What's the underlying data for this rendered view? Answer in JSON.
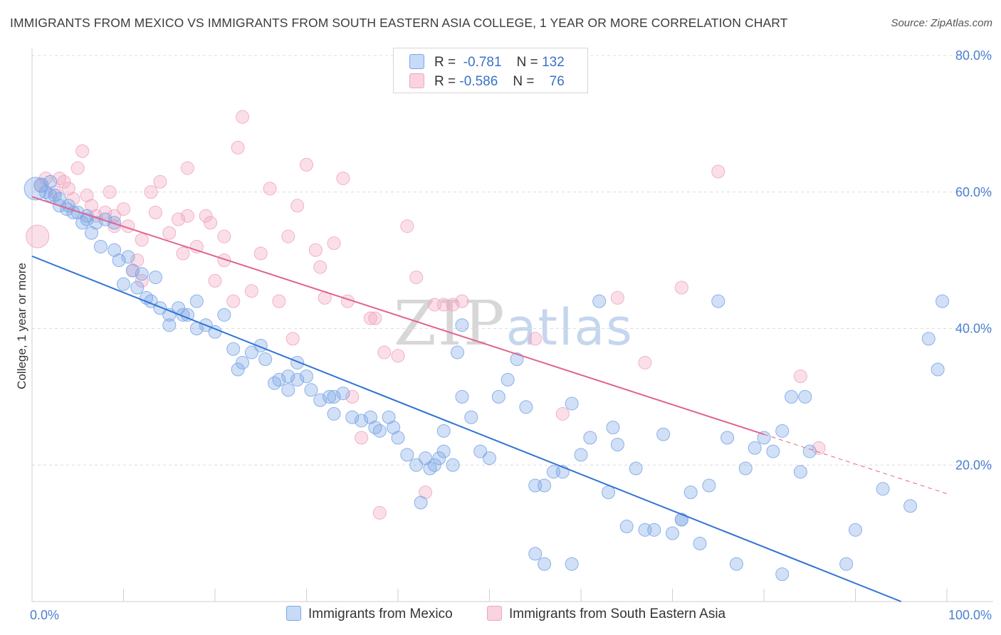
{
  "title": "IMMIGRANTS FROM MEXICO VS IMMIGRANTS FROM SOUTH EASTERN ASIA COLLEGE, 1 YEAR OR MORE CORRELATION CHART",
  "source": "Source: ZipAtlas.com",
  "watermark": {
    "zip": "ZIP",
    "atlas": "atlas"
  },
  "legend": {
    "rows": [
      {
        "r_label": "R =",
        "r_value": "-0.781",
        "n_label": "N =",
        "n_value": "132"
      },
      {
        "r_label": "R =",
        "r_value": "-0.586",
        "n_label": "N =",
        "n_value": "76"
      }
    ]
  },
  "bottom_legend": {
    "mexico": "Immigrants from Mexico",
    "sea": "Immigrants from South Eastern Asia"
  },
  "colors": {
    "mexico": "#7aa6e6",
    "mexico_line": "#2f73d6",
    "sea": "#f2a4bf",
    "sea_line": "#e0648f"
  },
  "chart_data": {
    "type": "scatter",
    "ylabel": "College, 1 year or more",
    "xlim": [
      0,
      100
    ],
    "ylim": [
      0,
      80
    ],
    "y_ticks": [
      "20.0%",
      "40.0%",
      "60.0%",
      "80.0%"
    ],
    "x_tick_labels": [
      "0.0%",
      "100.0%"
    ],
    "grid": true,
    "series": [
      {
        "name": "Immigrants from Mexico",
        "trend": {
          "x0": 0,
          "y0": 50.6,
          "x1": 95,
          "y1": 0
        },
        "points": [
          [
            0.4,
            60.5,
            16
          ],
          [
            1,
            61,
            10
          ],
          [
            1.5,
            60,
            9
          ],
          [
            2,
            61.5,
            9
          ],
          [
            3,
            59,
            9
          ],
          [
            2.5,
            59.5,
            9
          ],
          [
            4,
            58,
            9
          ],
          [
            3.8,
            57.5,
            9
          ],
          [
            5,
            57,
            9
          ],
          [
            6,
            56.5,
            9
          ],
          [
            7,
            55.5,
            9
          ],
          [
            8,
            56,
            9
          ],
          [
            9,
            55.5,
            9
          ],
          [
            4.5,
            57,
            9
          ],
          [
            5.5,
            55.5,
            9
          ],
          [
            6.5,
            54,
            9
          ],
          [
            7.5,
            52,
            9
          ],
          [
            9,
            51.5,
            9
          ],
          [
            9.5,
            50,
            9
          ],
          [
            10.5,
            50.5,
            9
          ],
          [
            11,
            48.5,
            9
          ],
          [
            12,
            48,
            9
          ],
          [
            13.5,
            47.5,
            9
          ],
          [
            10,
            46.5,
            9
          ],
          [
            11.5,
            46,
            9
          ],
          [
            12.5,
            44.5,
            9
          ],
          [
            13,
            44,
            9
          ],
          [
            14,
            43,
            9
          ],
          [
            15,
            42,
            9
          ],
          [
            16,
            43,
            9
          ],
          [
            17,
            42,
            9
          ],
          [
            15,
            40.5,
            9
          ],
          [
            16.5,
            42,
            9
          ],
          [
            18,
            40,
            9
          ],
          [
            19,
            40.5,
            9
          ],
          [
            20,
            39.5,
            9
          ],
          [
            21,
            42,
            9
          ],
          [
            18,
            44,
            9
          ],
          [
            22,
            37,
            9
          ],
          [
            23,
            35,
            9
          ],
          [
            22.5,
            34,
            9
          ],
          [
            24,
            36.5,
            9
          ],
          [
            25,
            37.5,
            9
          ],
          [
            25.5,
            35.5,
            9
          ],
          [
            27,
            32.5,
            9
          ],
          [
            28,
            33,
            9
          ],
          [
            29,
            35,
            9
          ],
          [
            29,
            32.5,
            9
          ],
          [
            30,
            33,
            9
          ],
          [
            30.5,
            31,
            9
          ],
          [
            31.5,
            29.5,
            9
          ],
          [
            32.5,
            30,
            9
          ],
          [
            33,
            30,
            9
          ],
          [
            34,
            30.5,
            9
          ],
          [
            35,
            27,
            9
          ],
          [
            36,
            26.5,
            9
          ],
          [
            37,
            27,
            9
          ],
          [
            37.5,
            25.5,
            9
          ],
          [
            38,
            25,
            9
          ],
          [
            39,
            27,
            9
          ],
          [
            39.5,
            25.5,
            9
          ],
          [
            40,
            24,
            9
          ],
          [
            41,
            21.5,
            9
          ],
          [
            42,
            20,
            9
          ],
          [
            43,
            21,
            9
          ],
          [
            43.5,
            19.5,
            9
          ],
          [
            45,
            25,
            9
          ],
          [
            44,
            20,
            9
          ],
          [
            46,
            20,
            9
          ],
          [
            46.5,
            36.5,
            9
          ],
          [
            47,
            40.5,
            9
          ],
          [
            48,
            27,
            9
          ],
          [
            49,
            22,
            9
          ],
          [
            50,
            21,
            9
          ],
          [
            51,
            30,
            9
          ],
          [
            52,
            32.5,
            9
          ],
          [
            53,
            35.5,
            9
          ],
          [
            54,
            28.5,
            9
          ],
          [
            55,
            17,
            9
          ],
          [
            56,
            17,
            9
          ],
          [
            57,
            19,
            9
          ],
          [
            58,
            19,
            9
          ],
          [
            59,
            29,
            9
          ],
          [
            60,
            21.5,
            9
          ],
          [
            61,
            24,
            9
          ],
          [
            62,
            44,
            9
          ],
          [
            63,
            16,
            9
          ],
          [
            64,
            23,
            9
          ],
          [
            65,
            11,
            9
          ],
          [
            66,
            19.5,
            9
          ],
          [
            67,
            10.5,
            9
          ],
          [
            68,
            10.5,
            9
          ],
          [
            69,
            24.5,
            9
          ],
          [
            70,
            10,
            9
          ],
          [
            71,
            12,
            9
          ],
          [
            72,
            16,
            9
          ],
          [
            73,
            8.5,
            9
          ],
          [
            74,
            17,
            9
          ],
          [
            75,
            44,
            9
          ],
          [
            76,
            24,
            9
          ],
          [
            77,
            5.5,
            9
          ],
          [
            78,
            19.5,
            9
          ],
          [
            79,
            22.5,
            9
          ],
          [
            80,
            24,
            9
          ],
          [
            81,
            22,
            9
          ],
          [
            82,
            4,
            9
          ],
          [
            83,
            30,
            9
          ],
          [
            84,
            19,
            9
          ],
          [
            84.5,
            30,
            9
          ],
          [
            85,
            22,
            9
          ],
          [
            89,
            5.5,
            9
          ],
          [
            90,
            10.5,
            9
          ],
          [
            93,
            16.5,
            9
          ],
          [
            96,
            14,
            9
          ],
          [
            99,
            34,
            9
          ],
          [
            98,
            38.5,
            9
          ],
          [
            99.5,
            44,
            9
          ],
          [
            3,
            58,
            9
          ],
          [
            6,
            56,
            9
          ],
          [
            2,
            59.5,
            9
          ],
          [
            28,
            31,
            9
          ],
          [
            26.5,
            32,
            9
          ],
          [
            33,
            27.5,
            9
          ],
          [
            47,
            30,
            9
          ],
          [
            44.5,
            21,
            9
          ],
          [
            55,
            7,
            9
          ],
          [
            56,
            5.5,
            9
          ],
          [
            59,
            5.5,
            9
          ],
          [
            45,
            22,
            9
          ],
          [
            63.5,
            25.5,
            9
          ],
          [
            71,
            12,
            9
          ],
          [
            82,
            25,
            9
          ],
          [
            42.5,
            14.5,
            9
          ]
        ]
      },
      {
        "name": "Immigrants from South Eastern Asia",
        "trend": {
          "x0": 0,
          "y0": 59.3,
          "x1": 80,
          "y1": 24.5,
          "dash_to_x": 100,
          "dash_to_y": 15.8
        },
        "points": [
          [
            0.6,
            53.5,
            16
          ],
          [
            1,
            61,
            10
          ],
          [
            1.5,
            62,
            9
          ],
          [
            2.5,
            60,
            9
          ],
          [
            3.5,
            61.5,
            9
          ],
          [
            4,
            60.5,
            9
          ],
          [
            5,
            63.5,
            9
          ],
          [
            5.5,
            66,
            9
          ],
          [
            6,
            59.5,
            9
          ],
          [
            7,
            56.5,
            9
          ],
          [
            8,
            57,
            9
          ],
          [
            8.5,
            60,
            9
          ],
          [
            9,
            56.5,
            9
          ],
          [
            10,
            57.5,
            9
          ],
          [
            10.5,
            55,
            9
          ],
          [
            11,
            48.5,
            9
          ],
          [
            11.5,
            50,
            9
          ],
          [
            12,
            47,
            9
          ],
          [
            13,
            60,
            9
          ],
          [
            13.5,
            57,
            9
          ],
          [
            14,
            61.5,
            9
          ],
          [
            15,
            54,
            9
          ],
          [
            16,
            56,
            9
          ],
          [
            16.5,
            51,
            9
          ],
          [
            17,
            56.5,
            9
          ],
          [
            18,
            52,
            9
          ],
          [
            19,
            56.5,
            9
          ],
          [
            19.5,
            55.5,
            9
          ],
          [
            20,
            47,
            9
          ],
          [
            21,
            50,
            9
          ],
          [
            22,
            44,
            9
          ],
          [
            22.5,
            66.5,
            9
          ],
          [
            23,
            71,
            9
          ],
          [
            24,
            45.5,
            9
          ],
          [
            25,
            51,
            9
          ],
          [
            26,
            60.5,
            9
          ],
          [
            27,
            44,
            9
          ],
          [
            28,
            53.5,
            9
          ],
          [
            28.5,
            38.5,
            9
          ],
          [
            29,
            58,
            9
          ],
          [
            30,
            64,
            9
          ],
          [
            31,
            51.5,
            9
          ],
          [
            31.5,
            49,
            9
          ],
          [
            32,
            44.5,
            9
          ],
          [
            33,
            52.5,
            9
          ],
          [
            34,
            62,
            9
          ],
          [
            34.5,
            44,
            9
          ],
          [
            35,
            30,
            9
          ],
          [
            36,
            24,
            9
          ],
          [
            37,
            41.5,
            9
          ],
          [
            37.5,
            41.5,
            9
          ],
          [
            38,
            13,
            9
          ],
          [
            38.5,
            36.5,
            9
          ],
          [
            40,
            36,
            9
          ],
          [
            41,
            55,
            9
          ],
          [
            42,
            47.5,
            9
          ],
          [
            43,
            16,
            9
          ],
          [
            44,
            43.5,
            9
          ],
          [
            45,
            43.5,
            9
          ],
          [
            46,
            43.5,
            9
          ],
          [
            47,
            44,
            9
          ],
          [
            55,
            38.5,
            9
          ],
          [
            58,
            27.5,
            9
          ],
          [
            64,
            44.5,
            9
          ],
          [
            67,
            35,
            9
          ],
          [
            71,
            46,
            9
          ],
          [
            75,
            63,
            9
          ],
          [
            84,
            33,
            9
          ],
          [
            86,
            22.5,
            9
          ],
          [
            4.5,
            59,
            9
          ],
          [
            6.5,
            58,
            9
          ],
          [
            9,
            55,
            9
          ],
          [
            3,
            62,
            9
          ],
          [
            12,
            53,
            9
          ],
          [
            17,
            63.5,
            9
          ],
          [
            21,
            53.5,
            9
          ]
        ]
      }
    ]
  }
}
